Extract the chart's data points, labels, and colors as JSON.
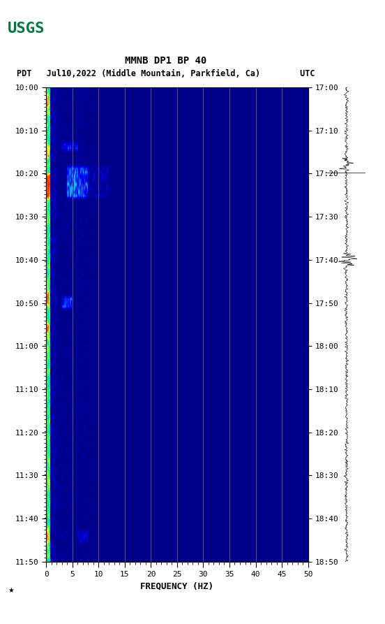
{
  "title_line1": "MMNB DP1 BP 40",
  "title_line2": "PDT   Jul10,2022 (Middle Mountain, Parkfield, Ca)        UTC",
  "xlabel": "FREQUENCY (HZ)",
  "freq_min": 0,
  "freq_max": 50,
  "freq_ticks": [
    0,
    5,
    10,
    15,
    20,
    25,
    30,
    35,
    40,
    45,
    50
  ],
  "time_left_labels": [
    "10:00",
    "10:10",
    "10:20",
    "10:30",
    "10:40",
    "10:50",
    "11:00",
    "11:10",
    "11:20",
    "11:30",
    "11:40",
    "11:50"
  ],
  "time_right_labels": [
    "17:00",
    "17:10",
    "17:20",
    "17:30",
    "17:40",
    "17:50",
    "18:00",
    "18:10",
    "18:20",
    "18:30",
    "18:40",
    "18:50"
  ],
  "n_time": 120,
  "n_freq": 500,
  "background_color": "#ffffff",
  "spectrogram_bg": "#00008B",
  "grid_color": "#8B7355",
  "grid_alpha": 0.7,
  "usgs_logo_color": "#007A3D",
  "waveform_color": "#000000",
  "fig_width": 5.52,
  "fig_height": 8.93
}
